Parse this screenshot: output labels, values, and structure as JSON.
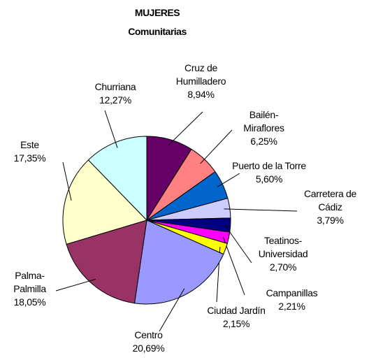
{
  "chart_data": {
    "type": "pie",
    "title": "MUJERES",
    "subtitle": "Comunitarias",
    "categories": [
      "Cruz de Humilladero",
      "Bailén-Miraflores",
      "Puerto de la Torre",
      "Carretera de Cádiz",
      "Teatinos-Universidad",
      "Campanillas",
      "Ciudad Jardín",
      "Centro",
      "Palma-Palmilla",
      "Este",
      "Churriana"
    ],
    "values": [
      8.94,
      6.25,
      5.6,
      3.79,
      2.7,
      2.21,
      2.15,
      20.69,
      18.05,
      17.35,
      12.27
    ],
    "value_labels": [
      "8,94%",
      "6,25%",
      "5,60%",
      "3,79%",
      "2,70%",
      "2,21%",
      "2,15%",
      "20,69%",
      "18,05%",
      "17,35%",
      "12,27%"
    ],
    "colors": [
      "#660066",
      "#ff8080",
      "#0066cc",
      "#ccccff",
      "#000080",
      "#ff00ff",
      "#ffff00",
      "#9999ff",
      "#993366",
      "#ffffcc",
      "#ccffff"
    ]
  }
}
